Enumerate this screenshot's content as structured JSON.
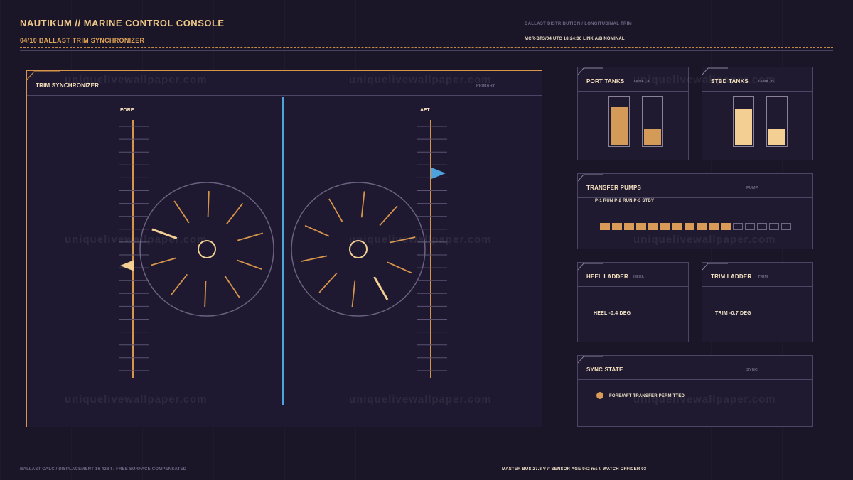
{
  "header": {
    "title": "NAUTIKUM // MARINE CONTROL CONSOLE",
    "subtitle": "04/10  BALLAST TRIM SYNCHRONIZER",
    "caption": "BALLAST DISTRIBUTION / LONGITUDINAL TRIM",
    "status": "MCR-BTS/04  UTC 18:24:36  LINK A/B NOMINAL"
  },
  "main_panel": {
    "title": "TRIM SYNCHRONIZER",
    "tag": "PRIMARY",
    "fore_label": "FORE",
    "aft_label": "AFT"
  },
  "port_tanks": {
    "title": "PORT TANKS",
    "tag": "TANK_A",
    "levels": [
      0.8,
      0.34
    ]
  },
  "stbd_tanks": {
    "title": "STBD TANKS",
    "tag": "TANK_B",
    "levels": [
      0.78,
      0.34
    ]
  },
  "transfer_pumps": {
    "title": "TRANSFER PUMPS",
    "tag": "PUMP",
    "status": "P-1 RUN  P-2 RUN  P-3 STBY",
    "cells_on": 11,
    "cells_total": 16
  },
  "heel_ladder": {
    "title": "HEEL LADDER",
    "tag": "HEEL",
    "value": "HEEL -0.4 DEG"
  },
  "trim_ladder": {
    "title": "TRIM LADDER",
    "tag": "TRIM",
    "value": "TRIM -0.7 DEG"
  },
  "sync_state": {
    "title": "SYNC STATE",
    "tag": "SYNC",
    "message": "FORE/AFT TRANSFER PERMITTED"
  },
  "footer": {
    "left": "BALLAST CALC / DISPLACEMENT 16 428 t / FREE SURFACE COMPENSATED",
    "right": "MASTER BUS 27.8 V  //  SENSOR AGE 942 ms  //  WATCH OFFICER 03"
  },
  "watermark": "uniquelivewallpaper.com",
  "colors": {
    "accent": "#d7954a",
    "accent_light": "#f4cf94",
    "blue": "#4fa3dc",
    "background": "#1a1527",
    "muted": "#6f6784"
  }
}
